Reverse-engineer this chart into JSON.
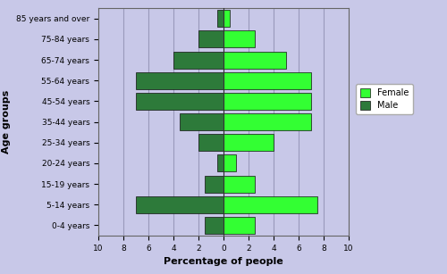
{
  "age_groups": [
    "0-4 years",
    "5-14 years",
    "15-19 years",
    "20-24 years",
    "25-34 years",
    "35-44 years",
    "45-54 years",
    "55-64 years",
    "65-74 years",
    "75-84 years",
    "85 years and over"
  ],
  "male_values": [
    1.5,
    7.0,
    1.5,
    0.5,
    2.0,
    3.5,
    7.0,
    7.0,
    4.0,
    2.0,
    0.5
  ],
  "female_values": [
    2.5,
    7.5,
    2.5,
    1.0,
    4.0,
    7.0,
    7.0,
    7.0,
    5.0,
    2.5,
    0.5
  ],
  "male_color": "#2d7a3a",
  "female_color": "#33ff33",
  "background_color": "#c8c8e8",
  "xlabel": "Percentage of people",
  "ylabel": "Age groups",
  "xlim": [
    -10,
    10
  ],
  "xticks": [
    -10,
    -8,
    -6,
    -4,
    -2,
    0,
    2,
    4,
    6,
    8,
    10
  ],
  "xticklabels": [
    "10",
    "8",
    "6",
    "4",
    "2",
    "0",
    "2",
    "4",
    "6",
    "8",
    "10"
  ],
  "grid_color": "#9999bb",
  "bar_edge_color": "#111111",
  "axis_label_fontsize": 8,
  "tick_fontsize": 6.5,
  "legend_female_label": "Female",
  "legend_male_label": "Male"
}
